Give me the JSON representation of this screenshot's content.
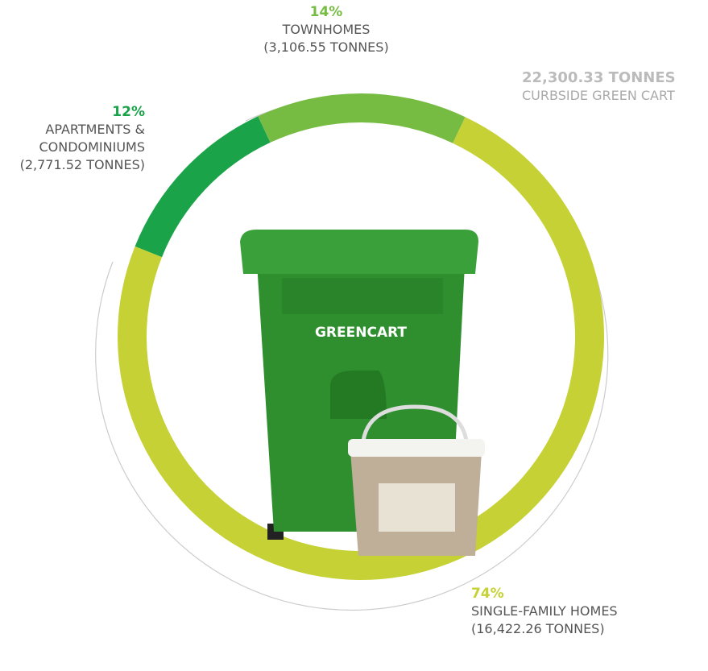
{
  "chart_data": {
    "type": "donut",
    "total_label": "22,300.33 TONNES",
    "total_caption": "CURBSIDE GREEN CART",
    "categories": [
      "TOWNHOMES",
      "SINGLE-FAMILY HOMES",
      "APARTMENTS & CONDOMINIUMS"
    ],
    "values": [
      14,
      74,
      12
    ],
    "value_labels": [
      "14%",
      "74%",
      "12%"
    ],
    "tonnes_labels": [
      "(3,106.55 TONNES)",
      "(16,422.26 TONNES)",
      "(2,771.52 TONNES)"
    ],
    "colors": [
      "#76bc43",
      "#c5d134",
      "#1ba34a"
    ]
  }
}
